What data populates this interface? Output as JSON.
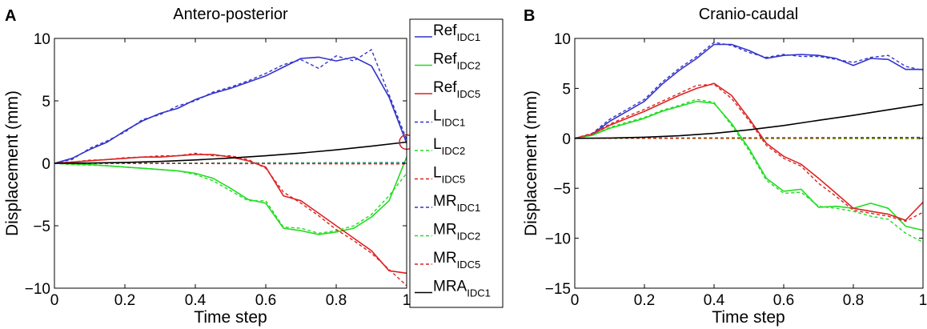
{
  "chart_data": [
    {
      "type": "line",
      "panel_label": "A",
      "title": "Antero-posterior",
      "xlabel": "Time step",
      "ylabel": "Displacement (mm)",
      "xlim": [
        0,
        1
      ],
      "ylim": [
        -10,
        10
      ],
      "xticks": [
        0,
        0.2,
        0.4,
        0.6,
        0.8,
        1
      ],
      "xtick_labels": [
        "0",
        "0.2",
        "0.4",
        "0.6",
        "0.8",
        "1"
      ],
      "yticks": [
        -10,
        -5,
        0,
        5,
        10
      ],
      "ytick_labels": [
        "−10",
        "−5",
        "0",
        "5",
        "10"
      ],
      "annotation": "red circle at t=1 on MRA IDC1 curve",
      "series": [
        {
          "name": "Ref IDC1",
          "color": "#3333cc",
          "style": "solid",
          "x": [
            0,
            0.05,
            0.1,
            0.15,
            0.2,
            0.25,
            0.3,
            0.35,
            0.4,
            0.45,
            0.5,
            0.55,
            0.6,
            0.65,
            0.7,
            0.75,
            0.8,
            0.85,
            0.9,
            0.95,
            1.0
          ],
          "y": [
            0,
            0.4,
            1.1,
            1.7,
            2.6,
            3.4,
            4.0,
            4.4,
            5.1,
            5.6,
            6.0,
            6.5,
            7.0,
            7.7,
            8.4,
            8.5,
            8.2,
            8.5,
            7.8,
            5.3,
            1.6
          ]
        },
        {
          "name": "Ref IDC2",
          "color": "#22dd22",
          "style": "solid",
          "x": [
            0,
            0.05,
            0.1,
            0.15,
            0.2,
            0.25,
            0.3,
            0.35,
            0.4,
            0.45,
            0.5,
            0.55,
            0.6,
            0.65,
            0.7,
            0.75,
            0.8,
            0.85,
            0.9,
            0.95,
            1.0
          ],
          "y": [
            0,
            -0.05,
            -0.1,
            -0.2,
            -0.3,
            -0.4,
            -0.5,
            -0.6,
            -0.8,
            -1.2,
            -2.0,
            -2.9,
            -3.2,
            -5.2,
            -5.4,
            -5.7,
            -5.5,
            -5.2,
            -4.3,
            -3.0,
            0.5
          ]
        },
        {
          "name": "Ref IDC5",
          "color": "#dd2222",
          "style": "solid",
          "x": [
            0,
            0.05,
            0.1,
            0.15,
            0.2,
            0.25,
            0.3,
            0.35,
            0.4,
            0.45,
            0.5,
            0.55,
            0.6,
            0.65,
            0.7,
            0.75,
            0.8,
            0.85,
            0.9,
            0.95,
            1.0
          ],
          "y": [
            0,
            0.1,
            0.2,
            0.3,
            0.4,
            0.5,
            0.5,
            0.6,
            0.7,
            0.7,
            0.5,
            0.2,
            -0.3,
            -2.6,
            -3.0,
            -4.0,
            -5.0,
            -6.0,
            -7.0,
            -8.6,
            -8.8
          ]
        },
        {
          "name": "L IDC1",
          "color": "#3333cc",
          "style": "dashed",
          "x": [
            0,
            1
          ],
          "y": [
            0,
            0.05
          ]
        },
        {
          "name": "L IDC2",
          "color": "#22dd22",
          "style": "dashed",
          "x": [
            0,
            1
          ],
          "y": [
            0,
            0.0
          ]
        },
        {
          "name": "L IDC5",
          "color": "#dd2222",
          "style": "dashed",
          "x": [
            0,
            1
          ],
          "y": [
            0,
            -0.05
          ]
        },
        {
          "name": "MR IDC1",
          "color": "#3333cc",
          "style": "dashed",
          "x": [
            0,
            0.05,
            0.1,
            0.15,
            0.2,
            0.25,
            0.3,
            0.35,
            0.4,
            0.45,
            0.5,
            0.55,
            0.6,
            0.65,
            0.7,
            0.75,
            0.8,
            0.85,
            0.9,
            0.95,
            1.0
          ],
          "y": [
            0,
            0.3,
            1.2,
            1.8,
            2.5,
            3.5,
            3.9,
            4.6,
            5.0,
            5.7,
            6.1,
            6.6,
            7.2,
            7.9,
            8.3,
            7.6,
            8.6,
            8.2,
            9.1,
            5.5,
            1.9
          ]
        },
        {
          "name": "MR IDC2",
          "color": "#22dd22",
          "style": "dashed",
          "x": [
            0,
            0.05,
            0.1,
            0.15,
            0.2,
            0.25,
            0.3,
            0.35,
            0.4,
            0.45,
            0.5,
            0.55,
            0.6,
            0.65,
            0.7,
            0.75,
            0.8,
            0.85,
            0.9,
            0.95,
            1.0
          ],
          "y": [
            0,
            -0.1,
            -0.15,
            -0.2,
            -0.3,
            -0.4,
            -0.5,
            -0.6,
            -0.9,
            -1.4,
            -2.2,
            -3.0,
            -3.0,
            -5.1,
            -5.2,
            -5.6,
            -5.4,
            -5.0,
            -4.1,
            -2.6,
            -0.8
          ]
        },
        {
          "name": "MR IDC5",
          "color": "#dd2222",
          "style": "dashed",
          "x": [
            0,
            0.05,
            0.1,
            0.15,
            0.2,
            0.25,
            0.3,
            0.35,
            0.4,
            0.45,
            0.5,
            0.55,
            0.6,
            0.65,
            0.7,
            0.75,
            0.8,
            0.85,
            0.9,
            0.95,
            1.0
          ],
          "y": [
            0,
            0.1,
            0.25,
            0.3,
            0.45,
            0.5,
            0.6,
            0.6,
            0.8,
            0.6,
            0.6,
            0.3,
            -0.4,
            -2.3,
            -3.2,
            -4.2,
            -5.3,
            -6.2,
            -7.2,
            -8.5,
            -9.8
          ]
        },
        {
          "name": "MRA IDC1",
          "color": "#000000",
          "style": "solid",
          "x": [
            0,
            0.1,
            0.2,
            0.3,
            0.4,
            0.5,
            0.6,
            0.7,
            0.8,
            0.9,
            1.0
          ],
          "y": [
            0,
            0.02,
            0.07,
            0.15,
            0.27,
            0.42,
            0.6,
            0.82,
            1.08,
            1.37,
            1.7
          ]
        }
      ],
      "legend": {
        "placement": "right",
        "entries": [
          {
            "base": "Ref",
            "sub": "IDC1",
            "color": "#3333cc",
            "style": "solid"
          },
          {
            "base": "Ref",
            "sub": "IDC2",
            "color": "#22dd22",
            "style": "solid"
          },
          {
            "base": "Ref",
            "sub": "IDC5",
            "color": "#dd2222",
            "style": "solid"
          },
          {
            "base": "L",
            "sub": "IDC1",
            "color": "#3333cc",
            "style": "dashed"
          },
          {
            "base": "L",
            "sub": "IDC2",
            "color": "#22dd22",
            "style": "dashed"
          },
          {
            "base": "L",
            "sub": "IDC5",
            "color": "#dd2222",
            "style": "dashed"
          },
          {
            "base": "MR",
            "sub": "IDC1",
            "color": "#3333cc",
            "style": "dashed"
          },
          {
            "base": "MR",
            "sub": "IDC2",
            "color": "#22dd22",
            "style": "dashed"
          },
          {
            "base": "MR",
            "sub": "IDC5",
            "color": "#dd2222",
            "style": "dashed"
          },
          {
            "base": "MRA",
            "sub": "IDC1",
            "color": "#000000",
            "style": "solid"
          }
        ]
      }
    },
    {
      "type": "line",
      "panel_label": "B",
      "title": "Cranio-caudal",
      "xlabel": "Time step",
      "ylabel": "Displacement (mm)",
      "xlim": [
        0,
        1
      ],
      "ylim": [
        -15,
        10
      ],
      "xticks": [
        0,
        0.2,
        0.4,
        0.6,
        0.8,
        1
      ],
      "xtick_labels": [
        "0",
        "0.2",
        "0.4",
        "0.6",
        "0.8",
        "1"
      ],
      "yticks": [
        -15,
        -10,
        -5,
        0,
        5,
        10
      ],
      "ytick_labels": [
        "−15",
        "−10",
        "−5",
        "0",
        "5",
        "10"
      ],
      "series": [
        {
          "name": "Ref IDC1",
          "color": "#3333cc",
          "style": "solid",
          "x": [
            0,
            0.05,
            0.1,
            0.15,
            0.2,
            0.25,
            0.3,
            0.35,
            0.4,
            0.45,
            0.5,
            0.55,
            0.6,
            0.65,
            0.7,
            0.75,
            0.8,
            0.85,
            0.9,
            0.95,
            1.0
          ],
          "y": [
            0,
            0.4,
            1.7,
            2.7,
            3.7,
            5.4,
            6.8,
            8.0,
            9.4,
            9.4,
            8.8,
            8.0,
            8.3,
            8.4,
            8.3,
            8.0,
            7.3,
            8.0,
            7.9,
            6.9,
            6.9
          ]
        },
        {
          "name": "Ref IDC2",
          "color": "#22dd22",
          "style": "solid",
          "x": [
            0,
            0.05,
            0.1,
            0.15,
            0.2,
            0.25,
            0.3,
            0.35,
            0.4,
            0.45,
            0.5,
            0.55,
            0.6,
            0.65,
            0.7,
            0.75,
            0.8,
            0.85,
            0.9,
            0.95,
            1.0
          ],
          "y": [
            0,
            0.3,
            1.0,
            1.5,
            2.0,
            2.7,
            3.2,
            3.7,
            3.5,
            1.5,
            -1.0,
            -4.0,
            -5.3,
            -5.1,
            -6.9,
            -6.8,
            -7.0,
            -6.5,
            -7.0,
            -8.8,
            -9.2
          ]
        },
        {
          "name": "Ref IDC5",
          "color": "#dd2222",
          "style": "solid",
          "x": [
            0,
            0.05,
            0.1,
            0.15,
            0.2,
            0.25,
            0.3,
            0.35,
            0.4,
            0.45,
            0.5,
            0.55,
            0.6,
            0.65,
            0.7,
            0.75,
            0.8,
            0.85,
            0.9,
            0.95,
            1.0
          ],
          "y": [
            0,
            0.4,
            1.3,
            2.0,
            2.7,
            3.5,
            4.3,
            5.0,
            5.5,
            4.3,
            2.0,
            -0.5,
            -1.8,
            -2.6,
            -4.0,
            -5.5,
            -7.0,
            -7.3,
            -7.6,
            -8.2,
            -6.4
          ]
        },
        {
          "name": "L IDC1",
          "color": "#3333cc",
          "style": "dashed",
          "x": [
            0,
            1
          ],
          "y": [
            0,
            0.1
          ]
        },
        {
          "name": "L IDC2",
          "color": "#22dd22",
          "style": "dashed",
          "x": [
            0,
            1
          ],
          "y": [
            0,
            -0.05
          ]
        },
        {
          "name": "L IDC5",
          "color": "#dd2222",
          "style": "dashed",
          "x": [
            0,
            1
          ],
          "y": [
            0,
            0.05
          ]
        },
        {
          "name": "MR IDC1",
          "color": "#3333cc",
          "style": "dashed",
          "x": [
            0,
            0.05,
            0.1,
            0.15,
            0.2,
            0.25,
            0.3,
            0.35,
            0.4,
            0.45,
            0.5,
            0.55,
            0.6,
            0.65,
            0.7,
            0.75,
            0.8,
            0.85,
            0.9,
            0.95,
            1.0
          ],
          "y": [
            0,
            0.5,
            1.9,
            2.9,
            3.9,
            5.6,
            7.0,
            8.2,
            9.6,
            9.3,
            8.6,
            8.1,
            8.4,
            8.2,
            8.2,
            7.9,
            7.6,
            8.1,
            8.3,
            7.2,
            6.8
          ]
        },
        {
          "name": "MR IDC2",
          "color": "#22dd22",
          "style": "dashed",
          "x": [
            0,
            0.05,
            0.1,
            0.15,
            0.2,
            0.25,
            0.3,
            0.35,
            0.4,
            0.45,
            0.5,
            0.55,
            0.6,
            0.65,
            0.7,
            0.75,
            0.8,
            0.85,
            0.9,
            0.95,
            1.0
          ],
          "y": [
            0,
            0.3,
            1.1,
            1.6,
            2.1,
            2.8,
            3.3,
            3.9,
            3.6,
            1.3,
            -1.2,
            -4.2,
            -5.5,
            -5.4,
            -6.8,
            -7.0,
            -7.3,
            -7.8,
            -8.1,
            -9.5,
            -10.4
          ]
        },
        {
          "name": "MR IDC5",
          "color": "#dd2222",
          "style": "dashed",
          "x": [
            0,
            0.05,
            0.1,
            0.15,
            0.2,
            0.25,
            0.3,
            0.35,
            0.4,
            0.45,
            0.5,
            0.55,
            0.6,
            0.65,
            0.7,
            0.75,
            0.8,
            0.85,
            0.9,
            0.95,
            1.0
          ],
          "y": [
            0,
            0.5,
            1.4,
            2.2,
            2.9,
            3.7,
            4.5,
            5.3,
            5.4,
            4.0,
            1.8,
            -0.7,
            -2.0,
            -2.8,
            -4.5,
            -5.8,
            -7.2,
            -7.5,
            -7.8,
            -8.3,
            -7.4
          ]
        },
        {
          "name": "MRA IDC1",
          "color": "#000000",
          "style": "solid",
          "x": [
            0,
            0.1,
            0.2,
            0.3,
            0.4,
            0.5,
            0.6,
            0.7,
            0.8,
            0.9,
            1.0
          ],
          "y": [
            0,
            0.03,
            0.11,
            0.26,
            0.5,
            0.85,
            1.28,
            1.8,
            2.3,
            2.85,
            3.4
          ]
        }
      ]
    }
  ]
}
